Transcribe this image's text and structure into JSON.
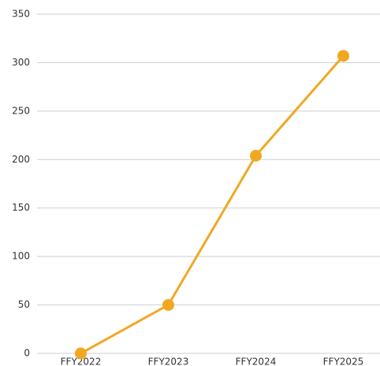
{
  "chart_data": {
    "type": "line",
    "categories": [
      "FFY2022",
      "FFY2023",
      "FFY2024",
      "FFY2025"
    ],
    "series": [
      {
        "name": null,
        "color": "#f0a823",
        "values": [
          0,
          50,
          204,
          307
        ]
      }
    ],
    "ylim": [
      0,
      350
    ],
    "yticks": [
      0,
      50,
      100,
      150,
      200,
      250,
      300,
      350
    ],
    "grid": true
  }
}
